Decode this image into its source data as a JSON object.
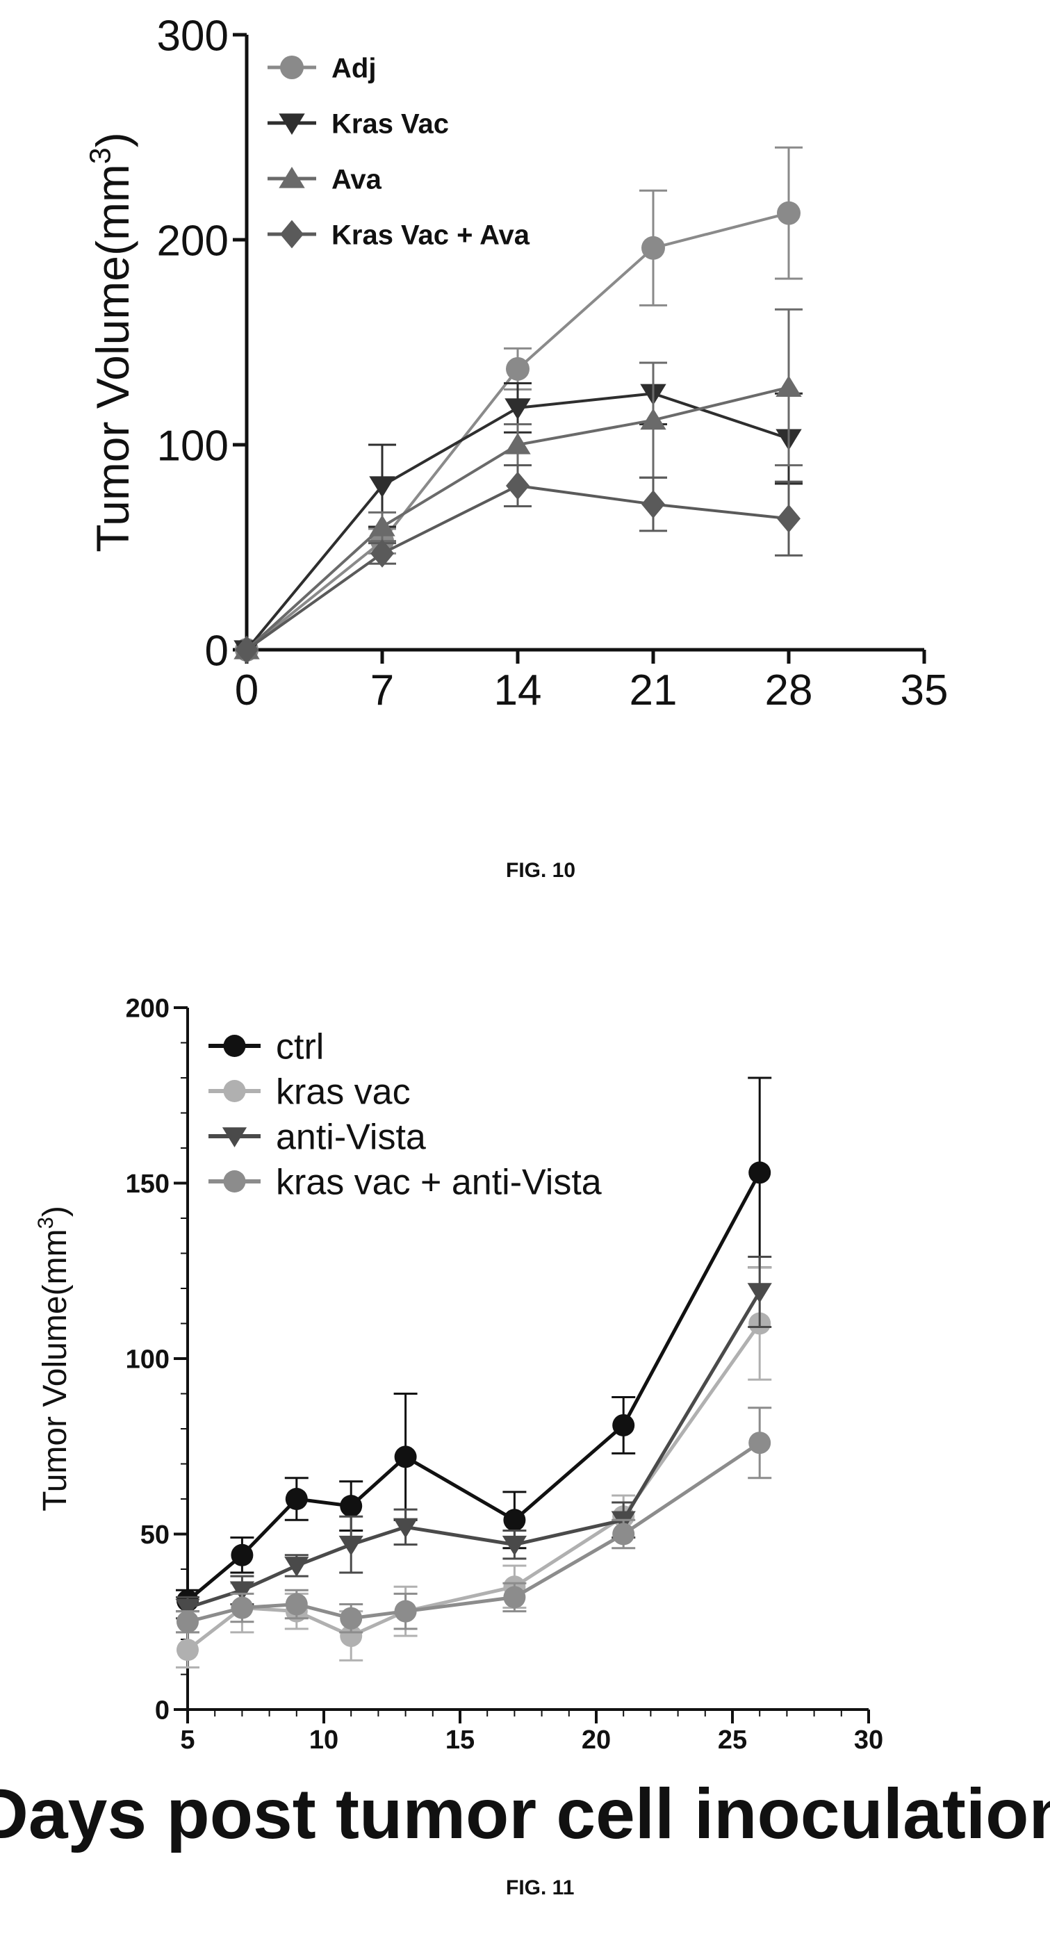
{
  "figures": [
    {
      "caption": "FIG. 10",
      "chart_data": {
        "type": "line",
        "title": "",
        "xlabel": "",
        "ylabel": "Tumor Volume(mm3)",
        "xlim": [
          0,
          35
        ],
        "ylim": [
          0,
          300
        ],
        "xticks": [
          "0",
          "7",
          "14",
          "21",
          "28",
          "35"
        ],
        "yticks": [
          "0",
          "100",
          "200",
          "300"
        ],
        "grid": false,
        "legend": "top-left",
        "x": [
          0,
          7,
          14,
          21,
          28
        ],
        "series": [
          {
            "name": "Adj",
            "color": "#8a8a8a",
            "marker": "circle",
            "values": [
              0,
              53,
              137,
              196,
              213
            ],
            "err": [
              0,
              6,
              10,
              28,
              32
            ]
          },
          {
            "name": "Kras Vac",
            "color": "#2e2e2e",
            "marker": "triangle-down",
            "values": [
              0,
              80,
              118,
              125,
              103
            ],
            "err": [
              0,
              20,
              12,
              15,
              22
            ]
          },
          {
            "name": "Ava",
            "color": "#6a6a6a",
            "marker": "triangle-up",
            "values": [
              0,
              60,
              100,
              112,
              128
            ],
            "err": [
              0,
              7,
              10,
              28,
              38
            ]
          },
          {
            "name": "Kras Vac + Ava",
            "color": "#5a5a5a",
            "marker": "diamond",
            "values": [
              0,
              47,
              80,
              71,
              64
            ],
            "err": [
              0,
              5,
              10,
              13,
              18
            ]
          }
        ]
      }
    },
    {
      "caption": "FIG. 11",
      "chart_data": {
        "type": "line",
        "title": "",
        "xlabel": "Days post tumor cell inoculation",
        "ylabel": "Tumor Volume(mm3)",
        "xlim": [
          5,
          30
        ],
        "ylim": [
          0,
          200
        ],
        "xticks": [
          "5",
          "10",
          "15",
          "20",
          "25",
          "30"
        ],
        "yticks": [
          "0",
          "50",
          "100",
          "150",
          "200"
        ],
        "grid": false,
        "legend": "top-left",
        "x": [
          5,
          7,
          9,
          11,
          13,
          17,
          21,
          26
        ],
        "series": [
          {
            "name": "ctrl",
            "color": "#111111",
            "marker": "circle",
            "values": [
              31,
              44,
              60,
              58,
              72,
              54,
              81,
              153
            ],
            "err": [
              3,
              5,
              6,
              7,
              18,
              8,
              8,
              27
            ]
          },
          {
            "name": "kras vac",
            "color": "#b0b0b0",
            "marker": "circle",
            "values": [
              17,
              29,
              28,
              21,
              28,
              35,
              55,
              110
            ],
            "err": [
              5,
              7,
              5,
              7,
              7,
              6,
              6,
              16
            ]
          },
          {
            "name": "anti-Vista",
            "color": "#4a4a4a",
            "marker": "triangle-down",
            "values": [
              29,
              34,
              41,
              47,
              52,
              47,
              54,
              119
            ],
            "err": [
              3,
              4,
              3,
              8,
              5,
              4,
              5,
              10
            ]
          },
          {
            "name": "kras vac + anti-Vista",
            "color": "#8c8c8c",
            "marker": "circle",
            "values": [
              25,
              29,
              30,
              26,
              28,
              32,
              50,
              76
            ],
            "err": [
              3,
              4,
              4,
              4,
              5,
              4,
              4,
              10
            ]
          }
        ]
      }
    }
  ]
}
